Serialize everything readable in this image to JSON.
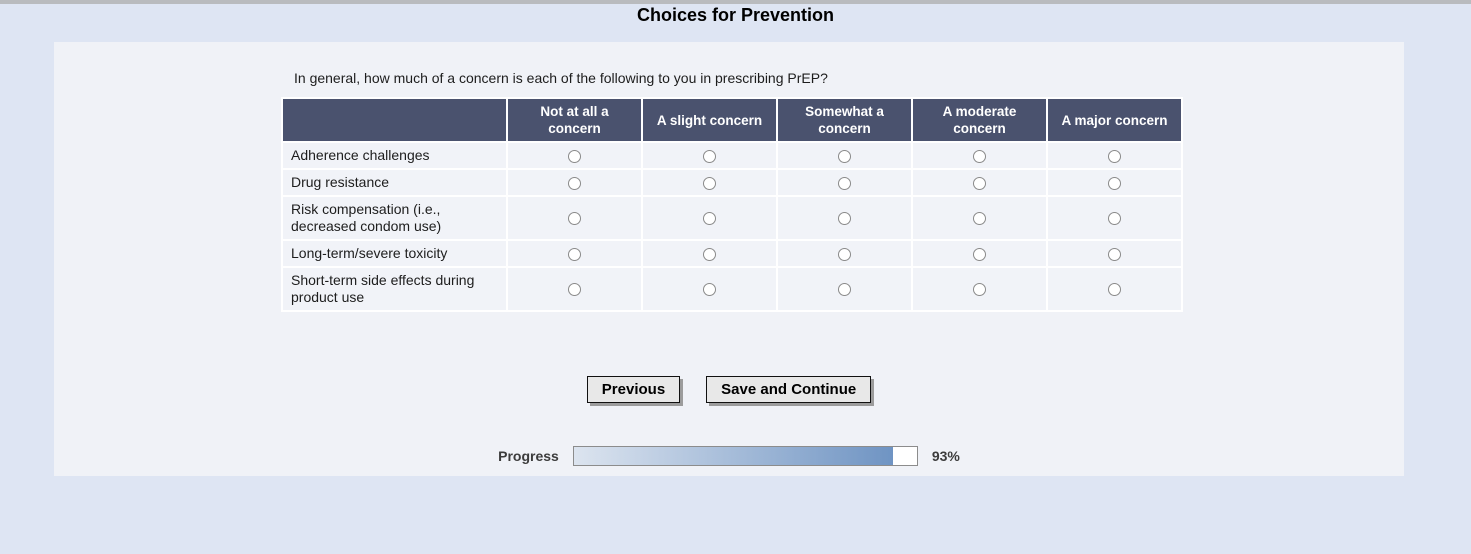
{
  "page": {
    "title": "Choices for Prevention"
  },
  "question": {
    "text": "In general, how much of a concern is each of the following to you in prescribing PrEP?"
  },
  "table": {
    "columns": [
      "Not at all a concern",
      "A slight concern",
      "Somewhat a concern",
      "A moderate concern",
      "A major concern"
    ],
    "rows": [
      {
        "label": "Adherence challenges"
      },
      {
        "label": "Drug resistance"
      },
      {
        "label": "Risk compensation (i.e., decreased condom use)"
      },
      {
        "label": "Long-term/severe toxicity"
      },
      {
        "label": "Short-term side effects during product use"
      }
    ]
  },
  "buttons": {
    "previous": "Previous",
    "save_continue": "Save and Continue"
  },
  "progress": {
    "label": "Progress",
    "percent": "93%",
    "value": 93
  },
  "colors": {
    "page_bg": "#dee5f3",
    "panel_bg": "#f0f2f7",
    "header_bg": "#4a526e",
    "cell_bg": "#f1f3f8",
    "progress_fill_start": "#dce4ef",
    "progress_fill_end": "#6f94c3"
  }
}
